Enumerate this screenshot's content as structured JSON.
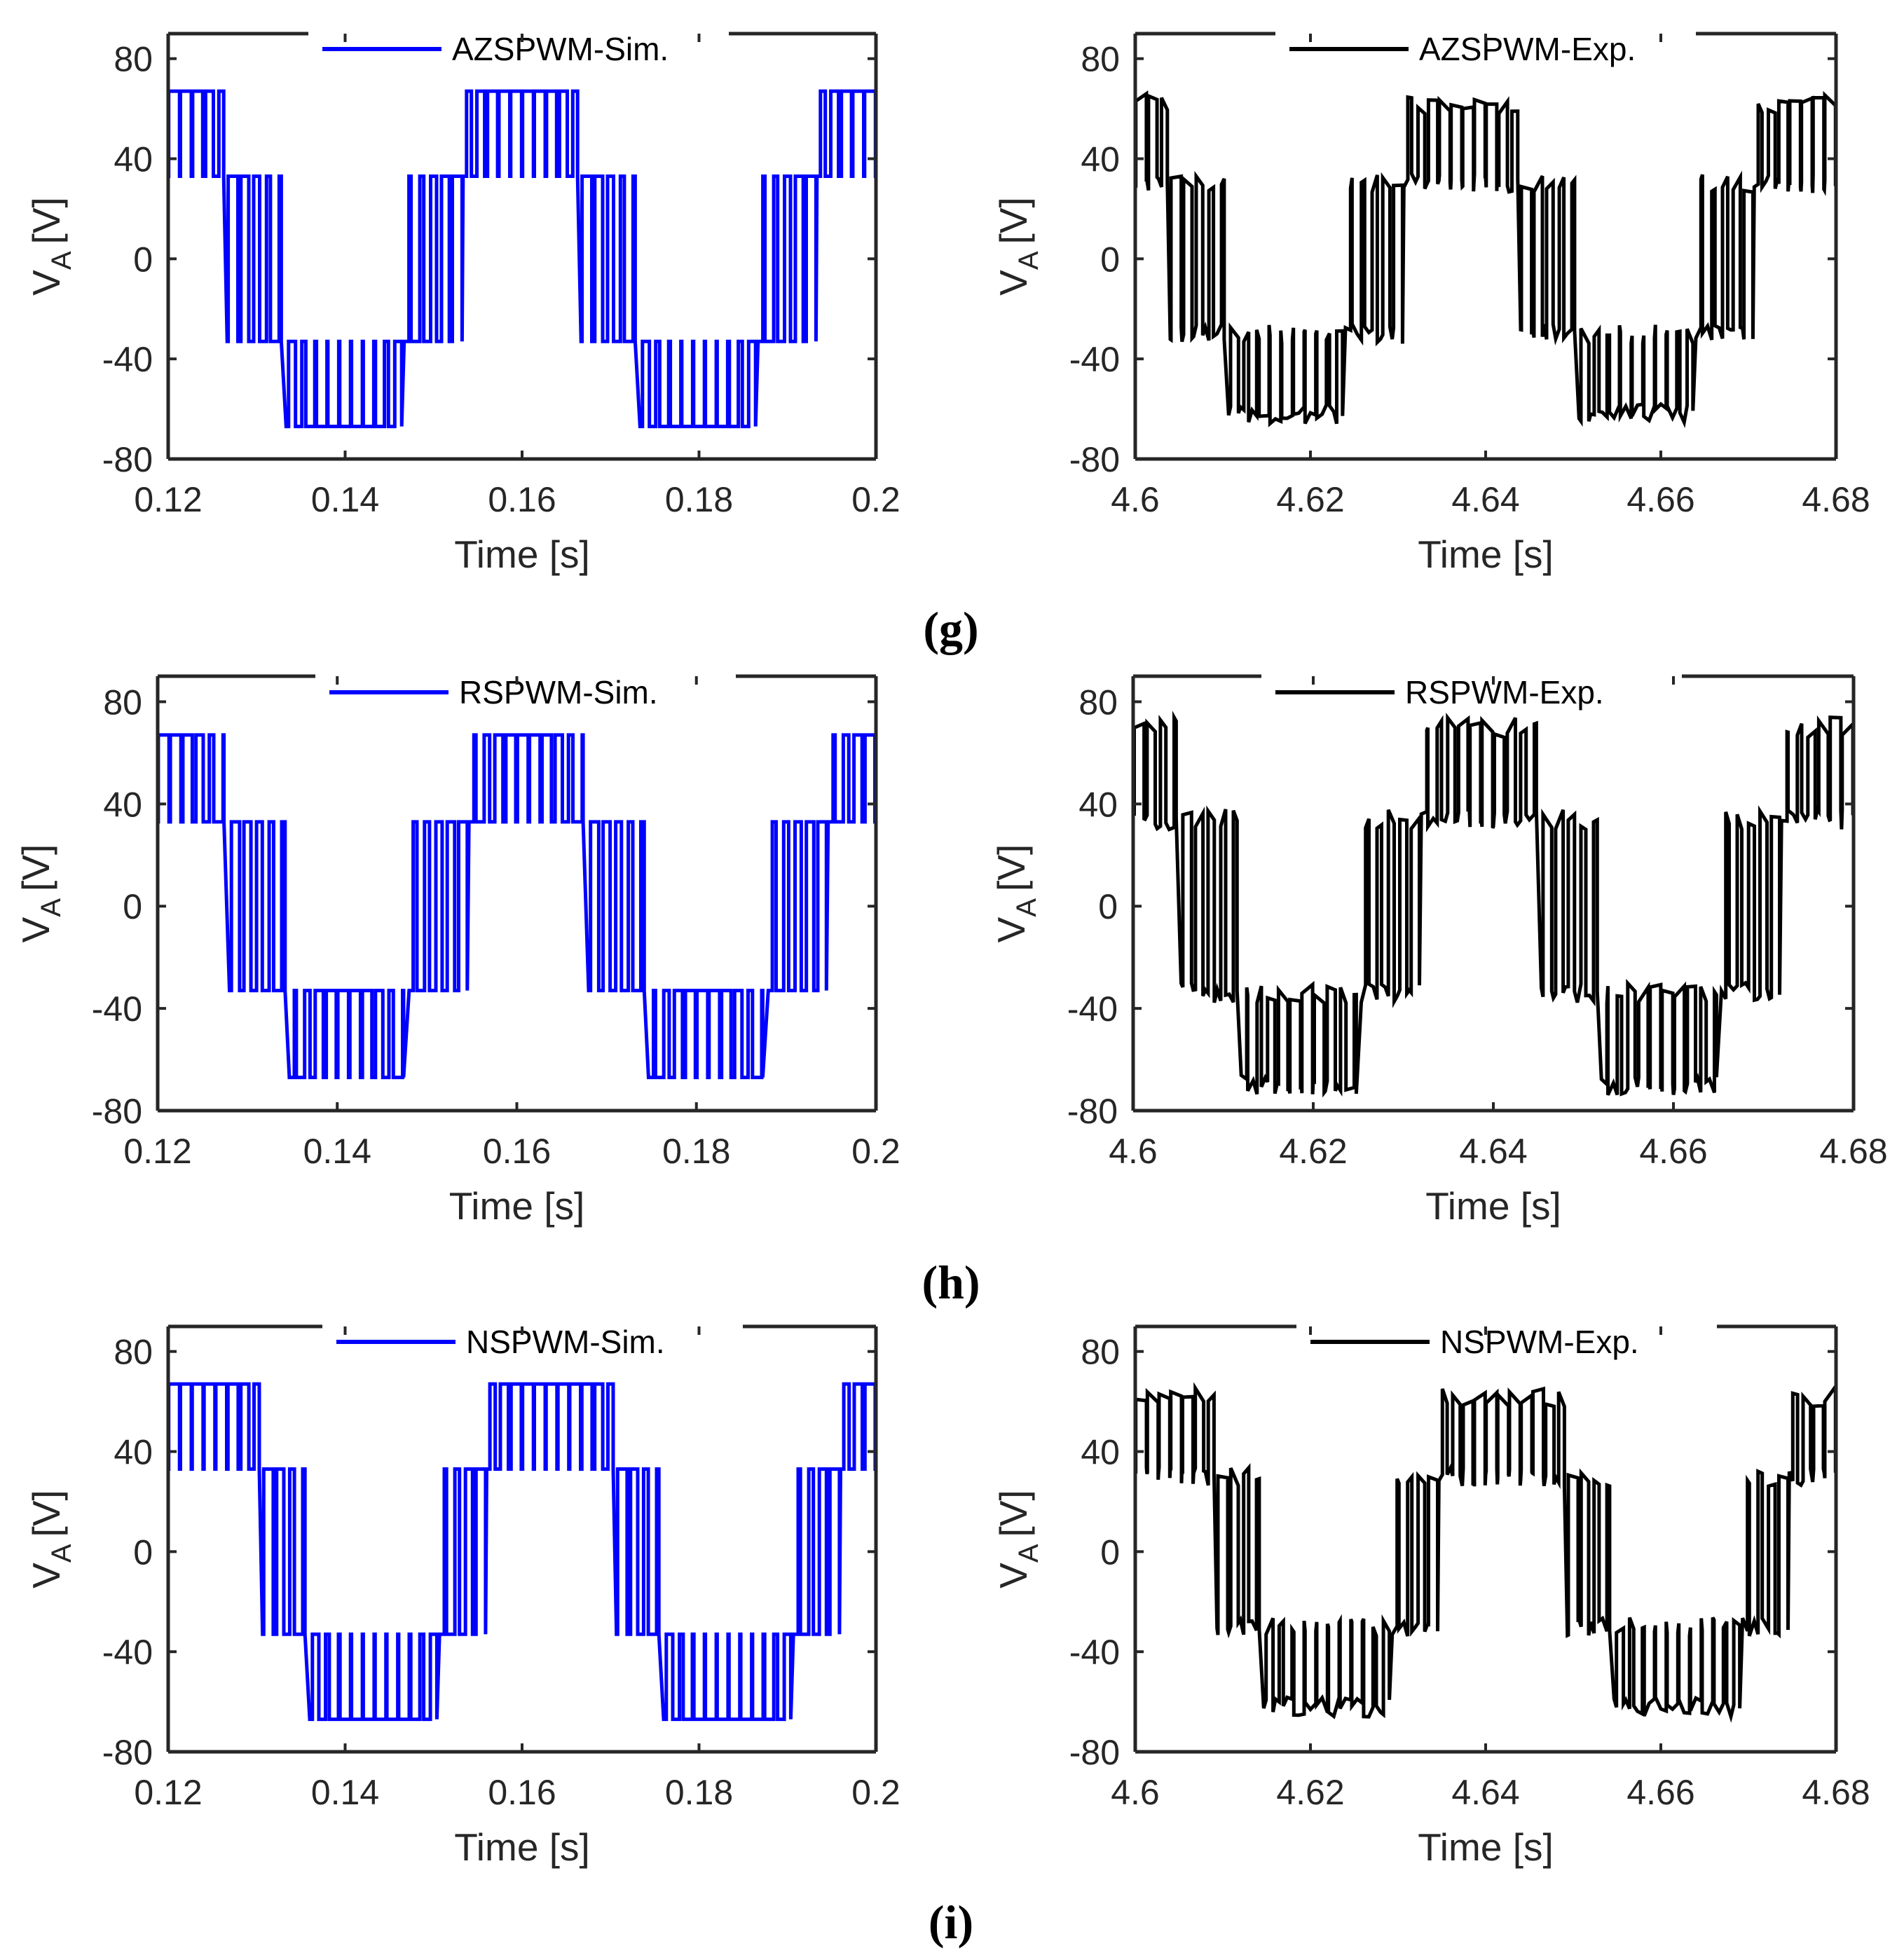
{
  "figure": {
    "captions": [
      "(g)",
      "(h)",
      "(i)"
    ]
  },
  "colors": {
    "sim": "#0000ff",
    "exp": "#000000",
    "axis": "#262626"
  },
  "chart_data": [
    {
      "type": "line",
      "id": "g-sim",
      "legend": "AZSPWM-Sim.",
      "series_color": "#0000ff",
      "xlabel": "Time [s]",
      "ylabel_main": "V",
      "ylabel_sub": "A",
      "ylabel_unit": "[V]",
      "xlim": [
        0.12,
        0.2
      ],
      "ylim": [
        -80,
        90
      ],
      "x_ticks": [
        0.12,
        0.14,
        0.16,
        0.18,
        0.2
      ],
      "x_tick_labels": [
        "0.12",
        "0.14",
        "0.16",
        "0.18",
        "0.2"
      ],
      "y_ticks": [
        80,
        40,
        0,
        -40,
        -80
      ],
      "y_tick_labels": [
        "80",
        "40",
        "0",
        "-40",
        "-80"
      ],
      "levels": [
        -67,
        -33,
        0,
        33,
        67
      ],
      "fundamental_hz": 25,
      "phase_deg": 90,
      "mod_index": 0.95,
      "carrier_periods": 60,
      "mode": "azspwm",
      "noise": 0
    },
    {
      "type": "line",
      "id": "g-exp",
      "legend": "AZSPWM-Exp.",
      "series_color": "#000000",
      "xlabel": "Time [s]",
      "ylabel_main": "V",
      "ylabel_sub": "A",
      "ylabel_unit": "[V]",
      "xlim": [
        4.6,
        4.68
      ],
      "ylim": [
        -80,
        90
      ],
      "x_ticks": [
        4.6,
        4.62,
        4.64,
        4.66,
        4.68
      ],
      "x_tick_labels": [
        "4.6",
        "4.62",
        "4.64",
        "4.66",
        "4.68"
      ],
      "y_ticks": [
        80,
        40,
        0,
        -40,
        -80
      ],
      "y_tick_labels": [
        "80",
        "40",
        "0",
        "-40",
        "-80"
      ],
      "levels": [
        -62,
        -30,
        0,
        30,
        62
      ],
      "fundamental_hz": 25,
      "phase_deg": 110,
      "mod_index": 0.95,
      "carrier_periods": 60,
      "mode": "azspwm",
      "noise": 4
    },
    {
      "type": "line",
      "id": "h-sim",
      "legend": "RSPWM-Sim.",
      "series_color": "#0000ff",
      "xlabel": "Time [s]",
      "ylabel_main": "V",
      "ylabel_sub": "A",
      "ylabel_unit": "[V]",
      "xlim": [
        0.12,
        0.2
      ],
      "ylim": [
        -80,
        90
      ],
      "x_ticks": [
        0.12,
        0.14,
        0.16,
        0.18,
        0.2
      ],
      "x_tick_labels": [
        "0.12",
        "0.14",
        "0.16",
        "0.18",
        "0.2"
      ],
      "y_ticks": [
        80,
        40,
        0,
        -40,
        -80
      ],
      "y_tick_labels": [
        "80",
        "40",
        "0",
        "-40",
        "-80"
      ],
      "levels": [
        -67,
        -33,
        0,
        33,
        67
      ],
      "fundamental_hz": 25,
      "phase_deg": 80,
      "mod_index": 0.95,
      "carrier_periods": 60,
      "mode": "rspwm",
      "noise": 0
    },
    {
      "type": "line",
      "id": "h-exp",
      "legend": "RSPWM-Exp.",
      "series_color": "#000000",
      "xlabel": "Time [s]",
      "ylabel_main": "V",
      "ylabel_sub": "A",
      "ylabel_unit": "[V]",
      "xlim": [
        4.6,
        4.68
      ],
      "ylim": [
        -80,
        90
      ],
      "x_ticks": [
        4.6,
        4.62,
        4.64,
        4.66,
        4.68
      ],
      "x_tick_labels": [
        "4.6",
        "4.62",
        "4.64",
        "4.66",
        "4.68"
      ],
      "y_ticks": [
        80,
        40,
        0,
        -40,
        -80
      ],
      "y_tick_labels": [
        "80",
        "40",
        "0",
        "-40",
        "-80"
      ],
      "levels": [
        -70,
        -34,
        0,
        34,
        70
      ],
      "fundamental_hz": 25,
      "phase_deg": 100,
      "mod_index": 0.95,
      "carrier_periods": 60,
      "mode": "rspwm",
      "noise": 4
    },
    {
      "type": "line",
      "id": "i-sim",
      "legend": "NSPWM-Sim.",
      "series_color": "#0000ff",
      "xlabel": "Time [s]",
      "ylabel_main": "V",
      "ylabel_sub": "A",
      "ylabel_unit": "[V]",
      "xlim": [
        0.12,
        0.2
      ],
      "ylim": [
        -80,
        90
      ],
      "x_ticks": [
        0.12,
        0.14,
        0.16,
        0.18,
        0.2
      ],
      "x_tick_labels": [
        "0.12",
        "0.14",
        "0.16",
        "0.18",
        "0.2"
      ],
      "y_ticks": [
        80,
        40,
        0,
        -40,
        -80
      ],
      "y_tick_labels": [
        "80",
        "40",
        "0",
        "-40",
        "-80"
      ],
      "levels": [
        -67,
        -33,
        0,
        33,
        67
      ],
      "fundamental_hz": 25,
      "phase_deg": 60,
      "mod_index": 0.95,
      "carrier_periods": 60,
      "mode": "nspwm",
      "noise": 0
    },
    {
      "type": "line",
      "id": "i-exp",
      "legend": "NSPWM-Exp.",
      "series_color": "#000000",
      "xlabel": "Time [s]",
      "ylabel_main": "V",
      "ylabel_sub": "A",
      "ylabel_unit": "[V]",
      "xlim": [
        4.6,
        4.68
      ],
      "ylim": [
        -80,
        90
      ],
      "x_ticks": [
        4.6,
        4.62,
        4.64,
        4.66,
        4.68
      ],
      "x_tick_labels": [
        "4.6",
        "4.62",
        "4.64",
        "4.66",
        "4.68"
      ],
      "y_ticks": [
        80,
        40,
        0,
        -40,
        -80
      ],
      "y_tick_labels": [
        "80",
        "40",
        "0",
        "-40",
        "-80"
      ],
      "levels": [
        -62,
        -30,
        0,
        30,
        62
      ],
      "fundamental_hz": 25,
      "phase_deg": 70,
      "mod_index": 0.95,
      "carrier_periods": 60,
      "mode": "nspwm",
      "noise": 4
    }
  ]
}
